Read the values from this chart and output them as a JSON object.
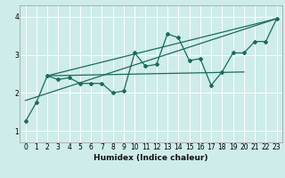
{
  "title": "",
  "xlabel": "Humidex (Indice chaleur)",
  "xlim": [
    -0.5,
    23.5
  ],
  "ylim": [
    0.7,
    4.3
  ],
  "xticks": [
    0,
    1,
    2,
    3,
    4,
    5,
    6,
    7,
    8,
    9,
    10,
    11,
    12,
    13,
    14,
    15,
    16,
    17,
    18,
    19,
    20,
    21,
    22,
    23
  ],
  "yticks": [
    1,
    2,
    3,
    4
  ],
  "bg_color": "#ceecea",
  "grid_color": "#ffffff",
  "line_color": "#1a6b5a",
  "line1_x": [
    0,
    1,
    2,
    3,
    4,
    5,
    6,
    7,
    8,
    9,
    10,
    11,
    12,
    13,
    14,
    15,
    16,
    17,
    18,
    19,
    20,
    21,
    22,
    23
  ],
  "line1_y": [
    1.25,
    1.75,
    2.45,
    2.35,
    2.4,
    2.25,
    2.25,
    2.25,
    2.0,
    2.05,
    3.05,
    2.7,
    2.75,
    3.55,
    3.45,
    2.85,
    2.9,
    2.2,
    2.55,
    3.05,
    3.05,
    3.35,
    3.35,
    3.95
  ],
  "line2_x": [
    0,
    23
  ],
  "line2_y": [
    1.8,
    3.95
  ],
  "line3_x": [
    2,
    23
  ],
  "line3_y": [
    2.45,
    3.95
  ],
  "line4_x": [
    2,
    20
  ],
  "line4_y": [
    2.45,
    2.55
  ]
}
